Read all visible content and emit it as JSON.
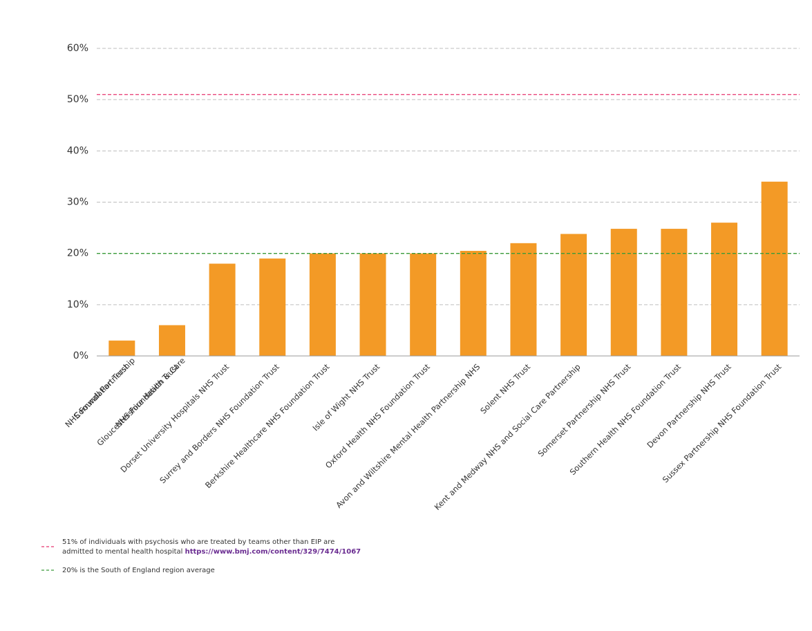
{
  "chart_data": {
    "type": "bar",
    "categories": [
      [
        "Cornwall Partnership",
        "NHS Foundation Trust"
      ],
      [
        "Gloucestershire Health & Care",
        "NHS Foundation Trust"
      ],
      [
        "Dorset University Hospitals NHS Trust"
      ],
      [
        "Surrey and Borders NHS Foundation Trust"
      ],
      [
        "Berkshire Healthcare NHS Foundation Trust"
      ],
      [
        "Isle of Wight NHS Trust"
      ],
      [
        "Oxford Health NHS Foundation Trust"
      ],
      [
        "Avon and Wiltshire Mental Health Partnership NHS"
      ],
      [
        "Solent NHS Trust"
      ],
      [
        "Kent and Medway NHS and Social Care Partnership"
      ],
      [
        "Somerset Partnership NHS Trust"
      ],
      [
        "Southern Health NHS Foundation Trust"
      ],
      [
        "Devon Partnership NHS Trust"
      ],
      [
        "Sussex Partnership NHS Foundation Trust"
      ]
    ],
    "values": [
      3,
      6,
      18,
      19,
      20,
      20,
      20,
      20.5,
      22,
      23.8,
      24.8,
      24.8,
      26,
      34
    ],
    "color": "#f39a26",
    "ylim": [
      0,
      60
    ],
    "yticks": [
      {
        "value": 0,
        "label": "0%"
      },
      {
        "value": 10,
        "label": "10%"
      },
      {
        "value": 20,
        "label": "20%"
      },
      {
        "value": 30,
        "label": "30%"
      },
      {
        "value": 40,
        "label": "40%"
      },
      {
        "value": 50,
        "label": "50%"
      },
      {
        "value": 60,
        "label": "60%"
      }
    ],
    "grid": true,
    "reference_lines": [
      {
        "value": 51,
        "color": "#e8336e",
        "label": [
          "51% of individuals with psychosis who are treated by teams other than EIP are",
          "admitted to mental health hospital "
        ],
        "link": "https://www.bmj.com/content/329/7474/1067"
      },
      {
        "value": 20,
        "color": "#3a9b3a",
        "label": [
          "20% is the South of England region average"
        ]
      }
    ]
  }
}
